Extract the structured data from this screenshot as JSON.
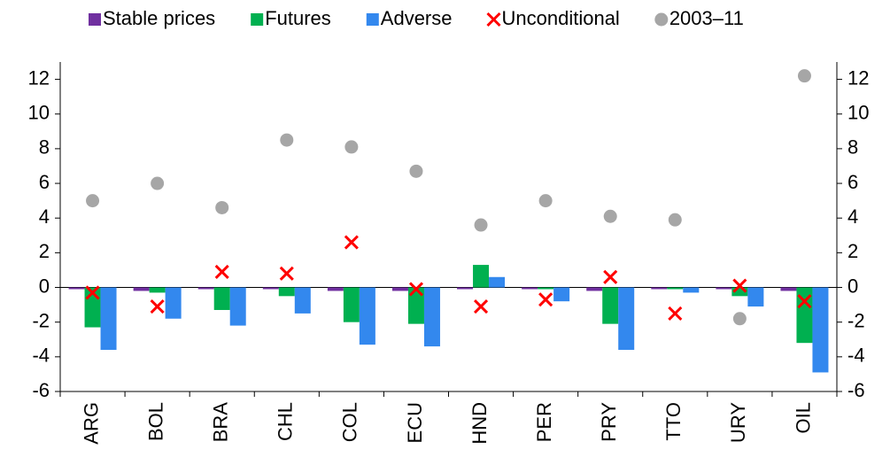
{
  "chart_data": {
    "type": "bar",
    "categories": [
      "ARG",
      "BOL",
      "BRA",
      "CHL",
      "COL",
      "ECU",
      "HND",
      "PER",
      "PRY",
      "TTO",
      "URY",
      "OIL"
    ],
    "series": [
      {
        "name": "Stable prices",
        "type": "bar",
        "color": "#7030a0",
        "values": [
          -0.1,
          -0.2,
          -0.1,
          -0.1,
          -0.2,
          -0.2,
          -0.1,
          -0.1,
          -0.2,
          -0.1,
          -0.1,
          -0.2
        ]
      },
      {
        "name": "Futures",
        "type": "bar",
        "color": "#00b050",
        "values": [
          -2.3,
          -0.3,
          -1.3,
          -0.5,
          -2.0,
          -2.1,
          1.3,
          -0.1,
          -2.1,
          -0.1,
          -0.5,
          -3.2
        ]
      },
      {
        "name": "Adverse",
        "type": "bar",
        "color": "#3388ee",
        "values": [
          -3.6,
          -1.8,
          -2.2,
          -1.5,
          -3.3,
          -3.4,
          0.6,
          -0.8,
          -3.6,
          -0.3,
          -1.1,
          -4.9
        ]
      },
      {
        "name": "Unconditional",
        "type": "cross",
        "color": "#ff0000",
        "values": [
          -0.3,
          -1.1,
          0.9,
          0.8,
          2.6,
          -0.1,
          -1.1,
          -0.7,
          0.6,
          -1.5,
          0.1,
          -0.8
        ]
      },
      {
        "name": "2003–11",
        "type": "dot",
        "color": "#a6a6a6",
        "values": [
          5.0,
          6.0,
          4.6,
          8.5,
          8.1,
          6.7,
          3.6,
          5.0,
          4.1,
          3.9,
          -1.8,
          12.2
        ]
      }
    ],
    "ylim": [
      -6,
      13
    ],
    "yticks": [
      -6,
      -4,
      -2,
      0,
      2,
      4,
      6,
      8,
      10,
      12
    ],
    "y2lim": [
      -6,
      13
    ],
    "y2ticks": [
      -6,
      -4,
      -2,
      0,
      2,
      4,
      6,
      8,
      10,
      12
    ],
    "legend": "top"
  }
}
